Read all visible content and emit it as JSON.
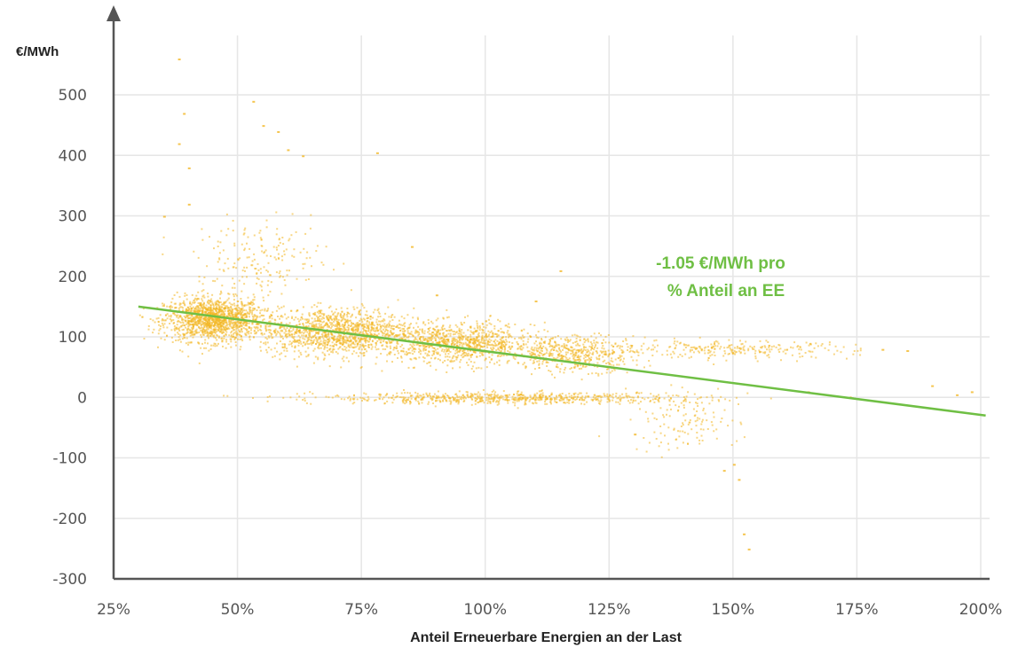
{
  "chart_data": {
    "type": "scatter",
    "title": "",
    "ylabel": "€/MWh",
    "xlabel": "Anteil Erneuerbare Energien an der Last",
    "xlim": [
      25,
      200
    ],
    "ylim": [
      -300,
      500
    ],
    "x_ticks": [
      25,
      50,
      75,
      100,
      125,
      150,
      175,
      200
    ],
    "x_tick_labels": [
      "25%",
      "50%",
      "75%",
      "100%",
      "125%",
      "150%",
      "175%",
      "200%"
    ],
    "y_ticks": [
      -300,
      -200,
      -100,
      0,
      100,
      200,
      300,
      400,
      500
    ],
    "y_tick_labels": [
      "-300",
      "-200",
      "-100",
      "0",
      "100",
      "200",
      "300",
      "400",
      "500"
    ],
    "grid": true,
    "colors": {
      "points": "#f2b623",
      "trend": "#6fbf44",
      "grid": "#e6e6e6",
      "axis": "#555555"
    },
    "trend_line": {
      "x": [
        30,
        201
      ],
      "y": [
        150,
        -30
      ],
      "label_line1": "-1.05 €/MWh pro",
      "label_line2": "% Anteil an EE"
    },
    "clusters": [
      {
        "x_center": 45,
        "x_spread": 9,
        "y_center": 130,
        "y_spread": 30,
        "count": 1400
      },
      {
        "x_center": 70,
        "x_spread": 14,
        "y_center": 110,
        "y_spread": 32,
        "count": 1300
      },
      {
        "x_center": 95,
        "x_spread": 13,
        "y_center": 90,
        "y_spread": 28,
        "count": 900
      },
      {
        "x_center": 118,
        "x_spread": 12,
        "y_center": 75,
        "y_spread": 25,
        "count": 500
      },
      {
        "x_center": 150,
        "x_spread": 22,
        "y_center": 80,
        "y_spread": 12,
        "count": 250
      },
      {
        "x_center": 105,
        "x_spread": 35,
        "y_center": 0,
        "y_spread": 8,
        "count": 700
      },
      {
        "x_center": 55,
        "x_spread": 12,
        "y_center": 230,
        "y_spread": 50,
        "count": 180
      },
      {
        "x_center": 140,
        "x_spread": 10,
        "y_center": -40,
        "y_spread": 40,
        "count": 120
      }
    ],
    "outliers": [
      {
        "x": 38,
        "y": 560
      },
      {
        "x": 39,
        "y": 470
      },
      {
        "x": 38,
        "y": 420
      },
      {
        "x": 40,
        "y": 380
      },
      {
        "x": 53,
        "y": 490
      },
      {
        "x": 55,
        "y": 450
      },
      {
        "x": 58,
        "y": 440
      },
      {
        "x": 60,
        "y": 410
      },
      {
        "x": 63,
        "y": 400
      },
      {
        "x": 78,
        "y": 405
      },
      {
        "x": 40,
        "y": 320
      },
      {
        "x": 35,
        "y": 300
      },
      {
        "x": 148,
        "y": -120
      },
      {
        "x": 150,
        "y": -110
      },
      {
        "x": 152,
        "y": -225
      },
      {
        "x": 153,
        "y": -250
      },
      {
        "x": 151,
        "y": -135
      },
      {
        "x": 195,
        "y": 5
      },
      {
        "x": 198,
        "y": 10
      },
      {
        "x": 185,
        "y": 78
      },
      {
        "x": 180,
        "y": 80
      },
      {
        "x": 190,
        "y": 20
      },
      {
        "x": 115,
        "y": 210
      },
      {
        "x": 110,
        "y": 160
      },
      {
        "x": 85,
        "y": 250
      },
      {
        "x": 90,
        "y": 170
      },
      {
        "x": 165,
        "y": 10
      },
      {
        "x": 130,
        "y": -60
      }
    ]
  }
}
